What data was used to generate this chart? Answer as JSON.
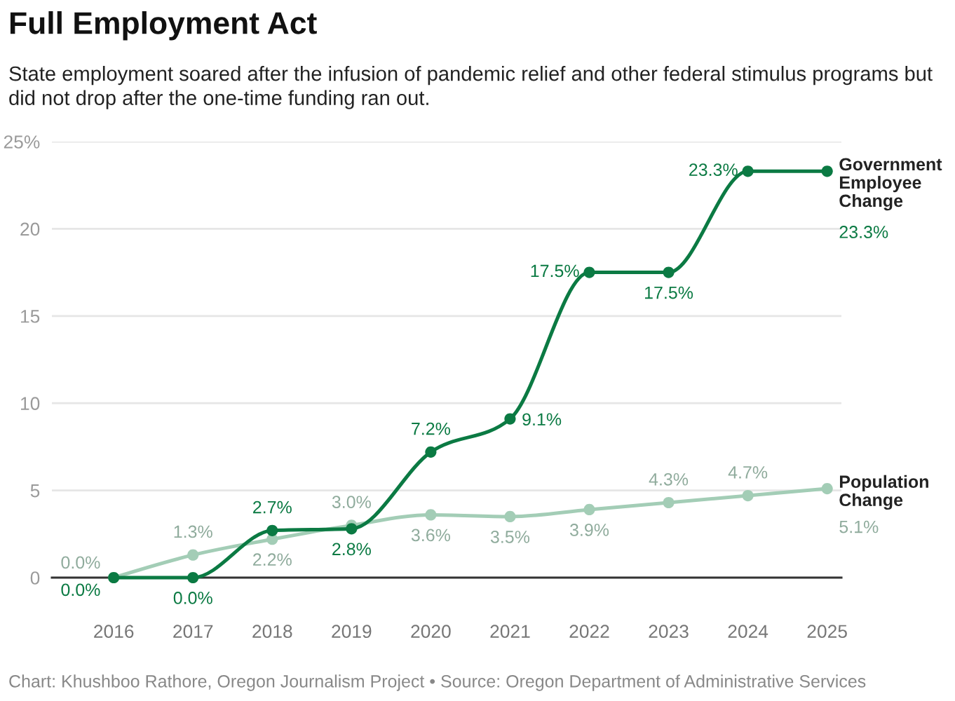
{
  "chart_data": {
    "type": "line",
    "title": "Full Employment Act",
    "subtitle": "State employment soared after the infusion of pandemic relief and other federal stimulus programs but did not drop after the one-time funding ran out.",
    "annotations": [
      "Chart: Khushboo Rathore, Oregon Journalism Project • Source: Oregon Department of Administrative Services"
    ],
    "categories": [
      "2016",
      "2017",
      "2018",
      "2019",
      "2020",
      "2021",
      "2022",
      "2023",
      "2024",
      "2025"
    ],
    "series": [
      {
        "name": "Government Employee Change",
        "color": "#0b7a43",
        "values": [
          0,
          0,
          2.7,
          2.8,
          7.2,
          9.1,
          17.5,
          17.5,
          23.3,
          23.3
        ],
        "value_labels": [
          "0.0%",
          "0.0%",
          "2.7%",
          "2.8%",
          "7.2%",
          "9.1%",
          "17.5%",
          "17.5%",
          "23.3%",
          "23.3%"
        ]
      },
      {
        "name": "Population Change",
        "color": "#a3cdb6",
        "values": [
          0,
          1.3,
          2.2,
          3.0,
          3.6,
          3.5,
          3.9,
          4.3,
          4.7,
          5.1
        ],
        "value_labels": [
          "0.0%",
          "1.3%",
          "2.2%",
          "3.0%",
          "3.6%",
          "3.5%",
          "3.9%",
          "4.3%",
          "4.7%",
          "5.1%"
        ]
      }
    ],
    "ylim": [
      0,
      25
    ],
    "yticks": [
      0,
      5,
      10,
      15,
      20,
      {
        "value": 25,
        "label": "25%"
      }
    ],
    "grid": "y",
    "marker": "circle",
    "line_style": "solid"
  }
}
